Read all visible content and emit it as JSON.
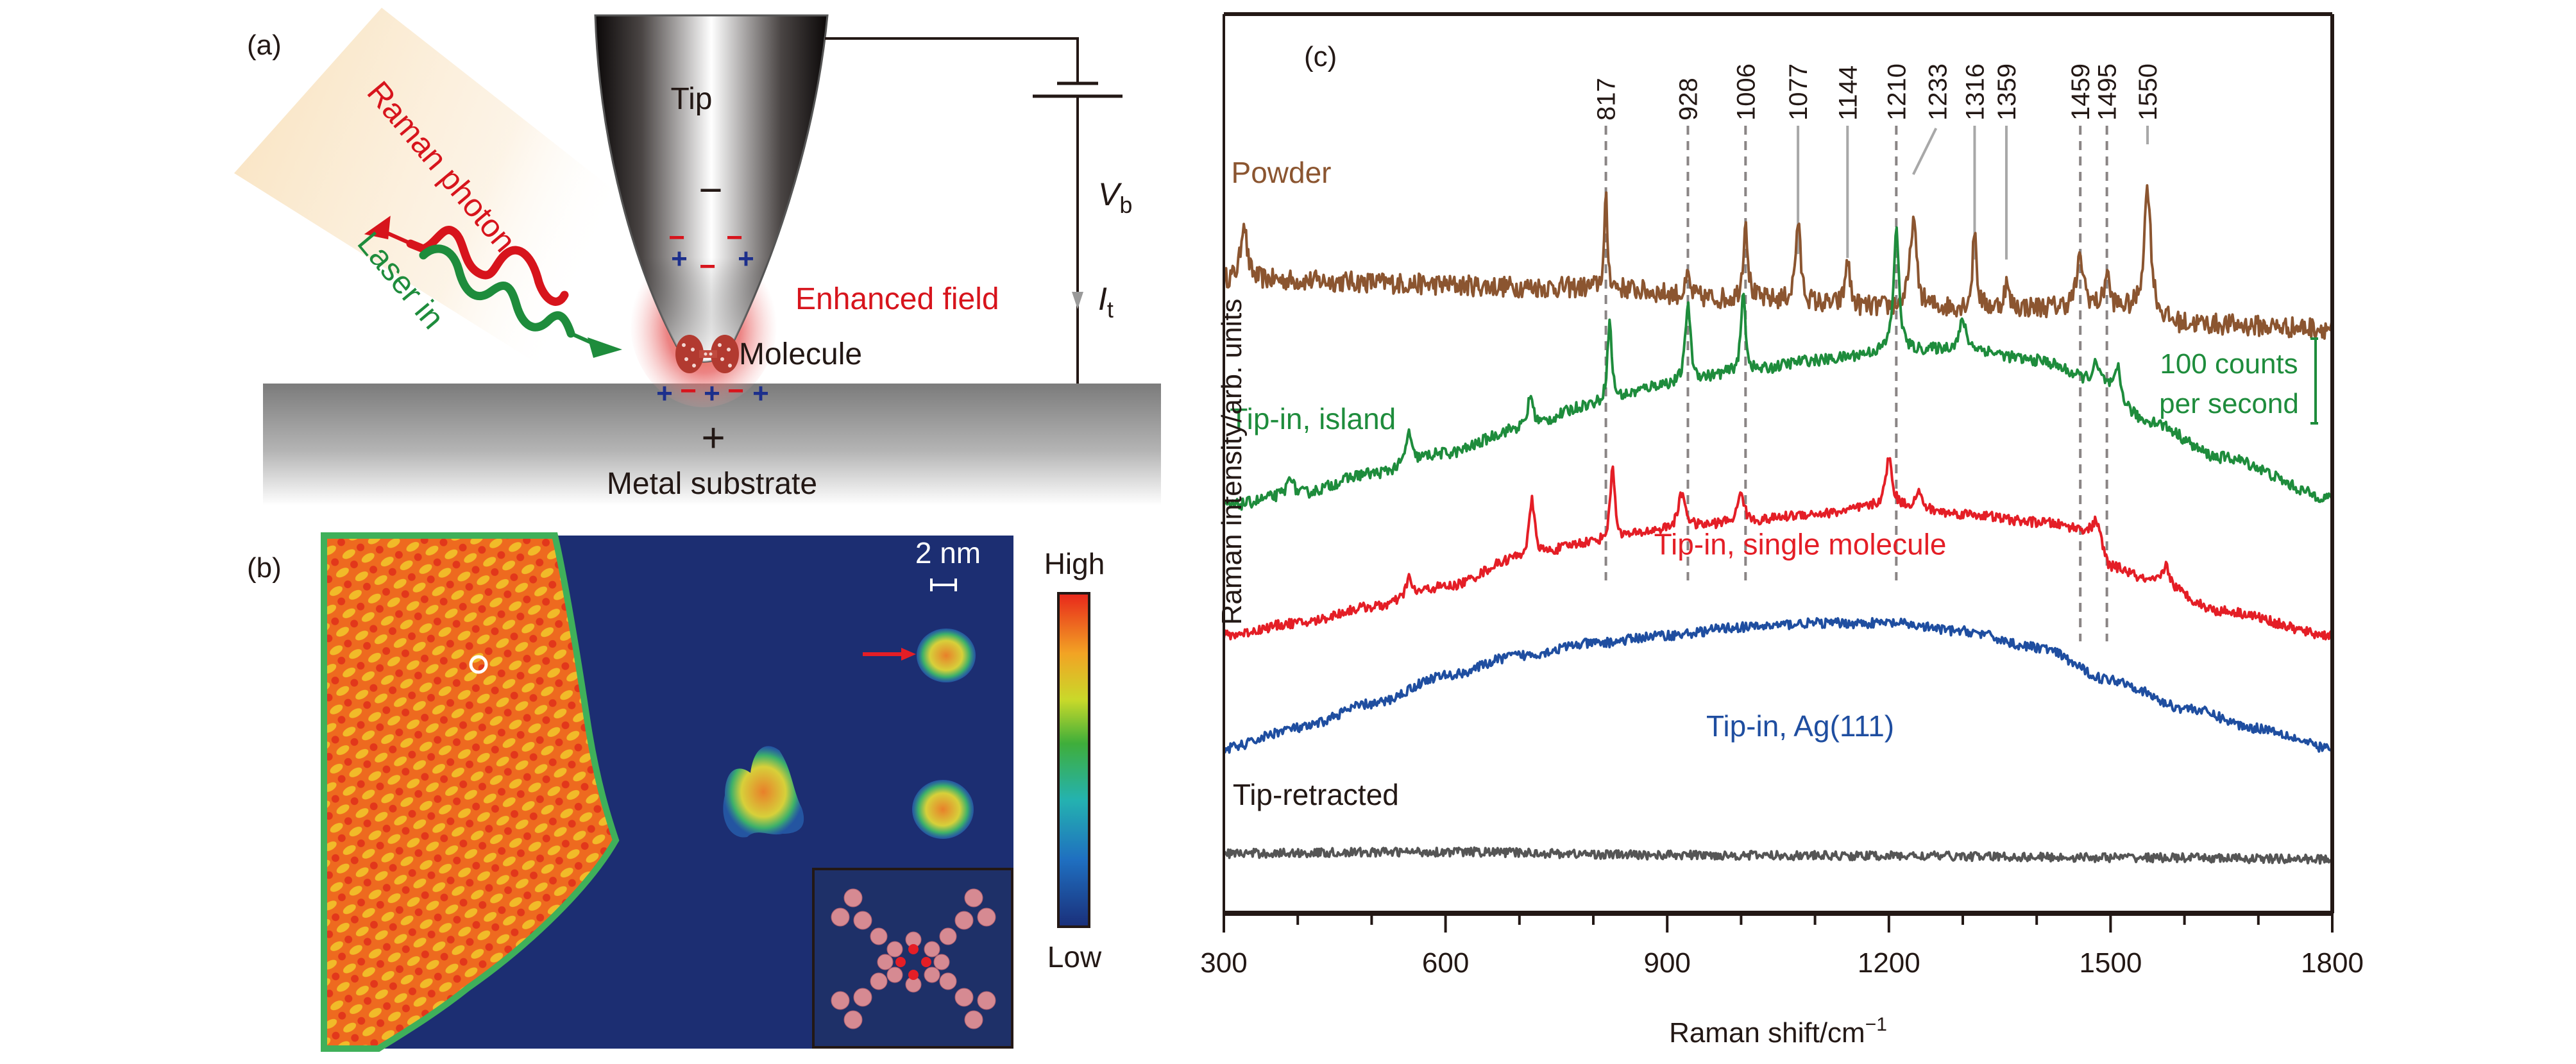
{
  "panels": {
    "a": {
      "label": "(a)",
      "tip_label": "Tip",
      "tip_charge": "−",
      "raman_photon_label": "Raman photon",
      "laser_in_label": "Laser in",
      "enhanced_field_label": "Enhanced field",
      "molecule_label": "Molecule",
      "substrate_label": "Metal substrate",
      "substrate_charge": "+",
      "bias_label_main": "V",
      "bias_label_sub": "b",
      "current_label_main": "I",
      "current_label_sub": "t",
      "tip_apex_charges": [
        "−",
        "−",
        "+",
        "+",
        "−"
      ],
      "substrate_surface_charges": [
        "+",
        "−",
        "+",
        "−",
        "+"
      ],
      "colors": {
        "raman": "#d7141c",
        "laser": "#1e8c3c",
        "field": "#d7141c",
        "plus": "#1c2f8c",
        "minus": "#d7141c"
      }
    },
    "b": {
      "label": "(b)",
      "scale_bar_label": "2 nm",
      "colorbar_high": "High",
      "colorbar_low": "Low",
      "colorbar_stops": [
        "#1a2f7a",
        "#1f6fc0",
        "#24b2b0",
        "#3fae3a",
        "#c9d92a",
        "#f2a324",
        "#e8261b"
      ]
    }
  },
  "chart_data": {
    "type": "line",
    "panel_label": "(c)",
    "title": "",
    "xlabel": "Raman shift/cm",
    "xlabel_superscript": "−1",
    "ylabel": "Raman intensity/arb. units",
    "xlim": [
      300,
      1800
    ],
    "ylim": [
      0,
      100
    ],
    "x_ticks": [
      300,
      600,
      900,
      1200,
      1500,
      1800
    ],
    "x_minor_step": 100,
    "grid": false,
    "legend": "inline",
    "scale_bar": {
      "label_line1": "100 counts",
      "label_line2": "per second",
      "value": 100,
      "color": "#1e8c3c"
    },
    "peak_markers": [
      {
        "label": "817",
        "x": 817,
        "style": "dashed"
      },
      {
        "label": "928",
        "x": 928,
        "style": "dashed"
      },
      {
        "label": "1006",
        "x": 1006,
        "style": "dashed"
      },
      {
        "label": "1077",
        "x": 1077,
        "style": "solid"
      },
      {
        "label": "1144",
        "x": 1144,
        "style": "solid"
      },
      {
        "label": "1210",
        "x": 1210,
        "style": "dashed"
      },
      {
        "label": "1233",
        "x": 1233,
        "style": "solid"
      },
      {
        "label": "1316",
        "x": 1316,
        "style": "solid"
      },
      {
        "label": "1359",
        "x": 1359,
        "style": "solid"
      },
      {
        "label": "1459",
        "x": 1459,
        "style": "dashed"
      },
      {
        "label": "1495",
        "x": 1495,
        "style": "dashed"
      },
      {
        "label": "1550",
        "x": 1550,
        "style": "solid"
      }
    ],
    "series": [
      {
        "name": "Powder",
        "color": "#8b5530",
        "label_at": [
          310,
          88.5
        ],
        "baseline": [
          [
            300,
            76.5
          ],
          [
            800,
            75.5
          ],
          [
            1000,
            74
          ],
          [
            1200,
            73
          ],
          [
            1500,
            73
          ],
          [
            1600,
            71
          ],
          [
            1800,
            70.5
          ]
        ],
        "peaks": [
          [
            327,
            7.5,
            9
          ],
          [
            817,
            11,
            5
          ],
          [
            928,
            2.5,
            6
          ],
          [
            1006,
            10,
            7
          ],
          [
            1077,
            10,
            8
          ],
          [
            1144,
            6,
            7
          ],
          [
            1233,
            11,
            10
          ],
          [
            1316,
            10,
            6
          ],
          [
            1359,
            3,
            7
          ],
          [
            1459,
            6,
            12
          ],
          [
            1495,
            4.5,
            7
          ],
          [
            1550,
            16,
            11
          ]
        ],
        "noise": 1.3
      },
      {
        "name": "Tip-in, island",
        "color": "#1e8c3c",
        "label_at": [
          308,
          58
        ],
        "baseline": [
          [
            300,
            48.5
          ],
          [
            400,
            50
          ],
          [
            500,
            52.5
          ],
          [
            600,
            55
          ],
          [
            700,
            58
          ],
          [
            800,
            61
          ],
          [
            900,
            63.5
          ],
          [
            1000,
            65
          ],
          [
            1100,
            66.5
          ],
          [
            1200,
            67.5
          ],
          [
            1300,
            68
          ],
          [
            1400,
            66.5
          ],
          [
            1480,
            64
          ],
          [
            1550,
            59
          ],
          [
            1650,
            54.5
          ],
          [
            1800,
            49.5
          ]
        ],
        "peaks": [
          [
            390,
            2.5,
            8
          ],
          [
            550,
            4,
            8
          ],
          [
            715,
            4,
            9
          ],
          [
            822,
            10,
            7
          ],
          [
            928,
            10,
            8
          ],
          [
            1003,
            10,
            7
          ],
          [
            1210,
            15,
            9
          ],
          [
            1300,
            3.5,
            10
          ],
          [
            1480,
            2,
            10
          ],
          [
            1510,
            3.5,
            8
          ]
        ],
        "noise": 0.7
      },
      {
        "name": "Tip-in, single molecule",
        "color": "#e41e26",
        "label_at": [
          1080,
          42.5
        ],
        "label_anchor": "middle",
        "baseline": [
          [
            300,
            32.5
          ],
          [
            400,
            34
          ],
          [
            500,
            36
          ],
          [
            600,
            38.5
          ],
          [
            700,
            42
          ],
          [
            800,
            44
          ],
          [
            900,
            45.5
          ],
          [
            1000,
            46.5
          ],
          [
            1100,
            47.5
          ],
          [
            1200,
            48.5
          ],
          [
            1300,
            47.5
          ],
          [
            1400,
            46.5
          ],
          [
            1480,
            45.5
          ],
          [
            1500,
            41
          ],
          [
            1560,
            39
          ],
          [
            1650,
            35.5
          ],
          [
            1800,
            32.5
          ]
        ],
        "peaks": [
          [
            550,
            2.5,
            8
          ],
          [
            717,
            7,
            9
          ],
          [
            826,
            9.5,
            7
          ],
          [
            920,
            4.5,
            12
          ],
          [
            1000,
            4,
            9
          ],
          [
            1200,
            6,
            10
          ],
          [
            1240,
            2,
            10
          ],
          [
            1480,
            1.5,
            6
          ],
          [
            1575,
            2.5,
            10
          ]
        ],
        "noise": 0.6
      },
      {
        "name": "Tip-in, Ag(111)",
        "color": "#1f4ea0",
        "label_at": [
          1080,
          20
        ],
        "label_anchor": "middle",
        "baseline": [
          [
            300,
            18.5
          ],
          [
            400,
            21
          ],
          [
            500,
            24
          ],
          [
            600,
            27.5
          ],
          [
            700,
            30
          ],
          [
            800,
            31.5
          ],
          [
            900,
            32.5
          ],
          [
            1000,
            33.5
          ],
          [
            1100,
            34
          ],
          [
            1200,
            34
          ],
          [
            1300,
            33
          ],
          [
            1400,
            31
          ],
          [
            1500,
            27
          ],
          [
            1600,
            23.5
          ],
          [
            1700,
            21
          ],
          [
            1800,
            18.5
          ]
        ],
        "peaks": [],
        "noise": 0.6
      },
      {
        "name": "Tip-retracted",
        "color": "#555555",
        "label_at": [
          312,
          11.5
        ],
        "label_color": "#231815",
        "baseline": [
          [
            300,
            5.5
          ],
          [
            600,
            5.7
          ],
          [
            900,
            5.3
          ],
          [
            1200,
            5.2
          ],
          [
            1500,
            5.0
          ],
          [
            1800,
            4.8
          ]
        ],
        "peaks": [],
        "noise": 0.55
      }
    ]
  }
}
